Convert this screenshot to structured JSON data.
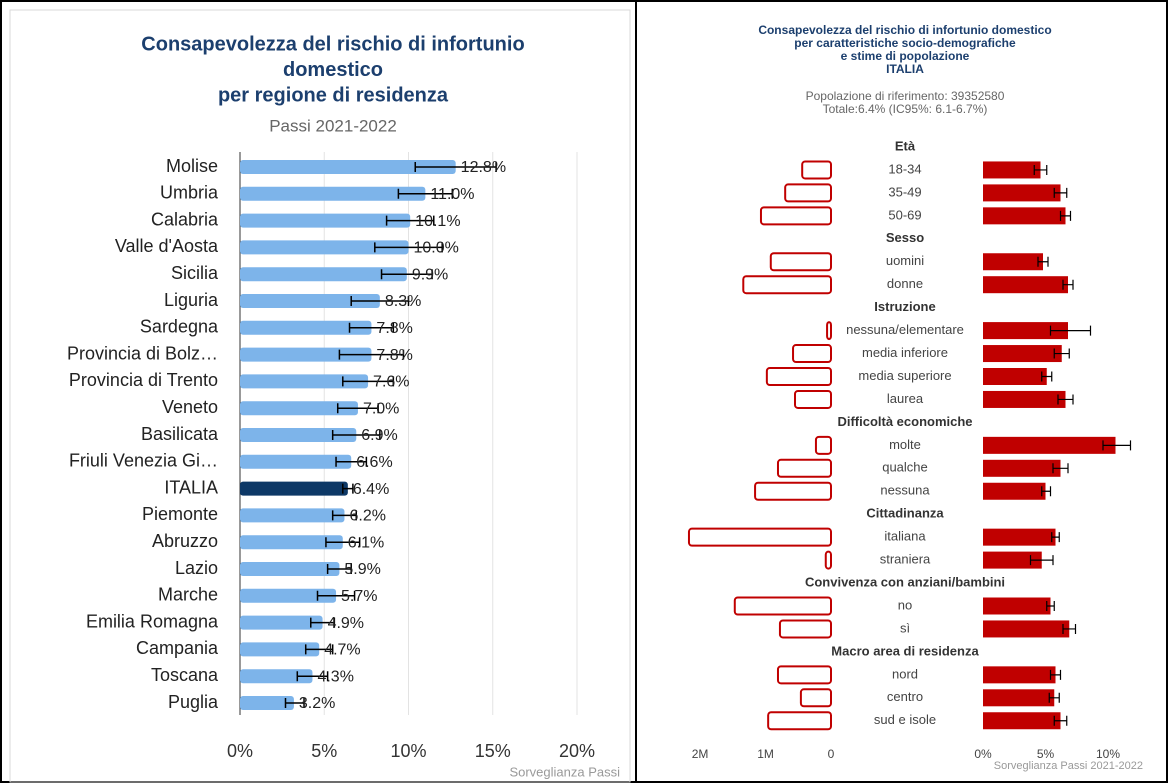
{
  "chart_data": [
    {
      "type": "bar",
      "title": [
        "Consapevolezza del rischio di infortunio",
        "domestico",
        "per regione di residenza"
      ],
      "subtitle": "Passi 2021-2022",
      "source": "Sorveglianza Passi",
      "categories": [
        "Molise",
        "Umbria",
        "Calabria",
        "Valle d'Aosta",
        "Sicilia",
        "Liguria",
        "Sardegna",
        "Provincia di Bolz…",
        "Provincia di Trento",
        "Veneto",
        "Basilicata",
        "Friuli Venezia Gi…",
        "ITALIA",
        "Piemonte",
        "Abruzzo",
        "Lazio",
        "Marche",
        "Emilia Romagna",
        "Campania",
        "Toscana",
        "Puglia"
      ],
      "values": [
        12.8,
        11.0,
        10.1,
        10.0,
        9.9,
        8.3,
        7.8,
        7.8,
        7.6,
        7.0,
        6.9,
        6.6,
        6.4,
        6.2,
        6.1,
        5.9,
        5.7,
        4.9,
        4.7,
        4.3,
        3.2
      ],
      "value_labels": [
        "12.8%",
        "11.0%",
        "10.1%",
        "10.0%",
        "9.9%",
        "8.3%",
        "7.8%",
        "7.8%",
        "7.6%",
        "7.0%",
        "6.9%",
        "6.6%",
        "6.4%",
        "6.2%",
        "6.1%",
        "5.9%",
        "5.7%",
        "4.9%",
        "4.7%",
        "4.3%",
        "3.2%"
      ],
      "ci_low": [
        10.4,
        9.4,
        8.7,
        8.0,
        8.4,
        6.6,
        6.5,
        5.9,
        6.1,
        5.8,
        5.5,
        5.7,
        6.1,
        5.5,
        5.1,
        5.2,
        4.6,
        4.2,
        3.9,
        3.4,
        2.7
      ],
      "ci_high": [
        15.2,
        12.6,
        11.5,
        12.0,
        11.4,
        10.0,
        9.1,
        9.7,
        9.1,
        8.2,
        8.3,
        7.5,
        6.7,
        6.9,
        7.1,
        6.6,
        6.8,
        5.6,
        5.5,
        5.2,
        3.8
      ],
      "colors": [
        "#7db4ea",
        "#7db4ea",
        "#7db4ea",
        "#7db4ea",
        "#7db4ea",
        "#7db4ea",
        "#7db4ea",
        "#7db4ea",
        "#7db4ea",
        "#7db4ea",
        "#7db4ea",
        "#7db4ea",
        "#0d3866",
        "#7db4ea",
        "#7db4ea",
        "#7db4ea",
        "#7db4ea",
        "#7db4ea",
        "#7db4ea",
        "#7db4ea",
        "#7db4ea"
      ],
      "xlim": [
        0,
        20
      ],
      "xticks": [
        {
          "value": 0,
          "label": "0%"
        },
        {
          "value": 5,
          "label": "5%"
        },
        {
          "value": 10,
          "label": "10%"
        },
        {
          "value": 15,
          "label": "15%"
        },
        {
          "value": 20,
          "label": "20%"
        }
      ],
      "grid": true
    },
    {
      "type": "butterfly",
      "title": [
        "Consapevolezza del rischio di infortunio domestico",
        "per caratteristiche socio-demografiche",
        "e stime di popolazione",
        "ITALIA"
      ],
      "subtitle": [
        "Popolazione di riferimento: 39352580",
        "Totale:6.4% (IC95%: 6.1-6.7%)"
      ],
      "source": "Sorveglianza Passi 2021-2022",
      "color": "#c00000",
      "groups": [
        {
          "name": "Età",
          "categories": [
            "18-34",
            "35-49",
            "50-69"
          ],
          "population": [
            440000,
            700000,
            1070000
          ],
          "values": [
            4.6,
            6.2,
            6.6
          ],
          "ci_low": [
            4.1,
            5.7,
            6.2
          ],
          "ci_high": [
            5.1,
            6.7,
            7.0
          ]
        },
        {
          "name": "Sesso",
          "categories": [
            "uomini",
            "donne"
          ],
          "population": [
            920000,
            1340000
          ],
          "values": [
            4.8,
            6.8
          ],
          "ci_low": [
            4.4,
            6.4
          ],
          "ci_high": [
            5.2,
            7.2
          ]
        },
        {
          "name": "Istruzione",
          "categories": [
            "nessuna/elementare",
            "media inferiore",
            "media superiore",
            "laurea"
          ],
          "population": [
            60000,
            580000,
            980000,
            550000
          ],
          "values": [
            6.8,
            6.3,
            5.1,
            6.6
          ],
          "ci_low": [
            5.4,
            5.7,
            4.7,
            6.0
          ],
          "ci_high": [
            8.6,
            6.9,
            5.5,
            7.2
          ]
        },
        {
          "name": "Difficoltà economiche",
          "categories": [
            "molte",
            "qualche",
            "nessuna"
          ],
          "population": [
            230000,
            810000,
            1160000
          ],
          "values": [
            10.6,
            6.2,
            5.0
          ],
          "ci_low": [
            9.6,
            5.6,
            4.7
          ],
          "ci_high": [
            11.8,
            6.8,
            5.4
          ]
        },
        {
          "name": "Cittadinanza",
          "categories": [
            "italiana",
            "straniera"
          ],
          "population": [
            2170000,
            80000
          ],
          "values": [
            5.8,
            4.7
          ],
          "ci_low": [
            5.5,
            3.8
          ],
          "ci_high": [
            6.1,
            5.6
          ]
        },
        {
          "name": "Convivenza con anziani/bambini",
          "categories": [
            "no",
            "sì"
          ],
          "population": [
            1470000,
            780000
          ],
          "values": [
            5.4,
            6.9
          ],
          "ci_low": [
            5.1,
            6.4
          ],
          "ci_high": [
            5.7,
            7.4
          ]
        },
        {
          "name": "Macro area di residenza",
          "categories": [
            "nord",
            "centro",
            "sud e isole"
          ],
          "population": [
            810000,
            460000,
            960000
          ],
          "values": [
            5.8,
            5.7,
            6.2
          ],
          "ci_low": [
            5.4,
            5.3,
            5.7
          ],
          "ci_high": [
            6.2,
            6.1,
            6.7
          ]
        }
      ],
      "population_lim": [
        0,
        2200000
      ],
      "population_ticks": [
        {
          "value": 2000000,
          "label": "2M"
        },
        {
          "value": 1000000,
          "label": "1M"
        },
        0
      ],
      "xlim": [
        0,
        14
      ],
      "xticks": [
        {
          "value": 0,
          "label": "0%"
        },
        {
          "value": 5,
          "label": "5%"
        },
        {
          "value": 10,
          "label": "10%"
        }
      ]
    }
  ]
}
